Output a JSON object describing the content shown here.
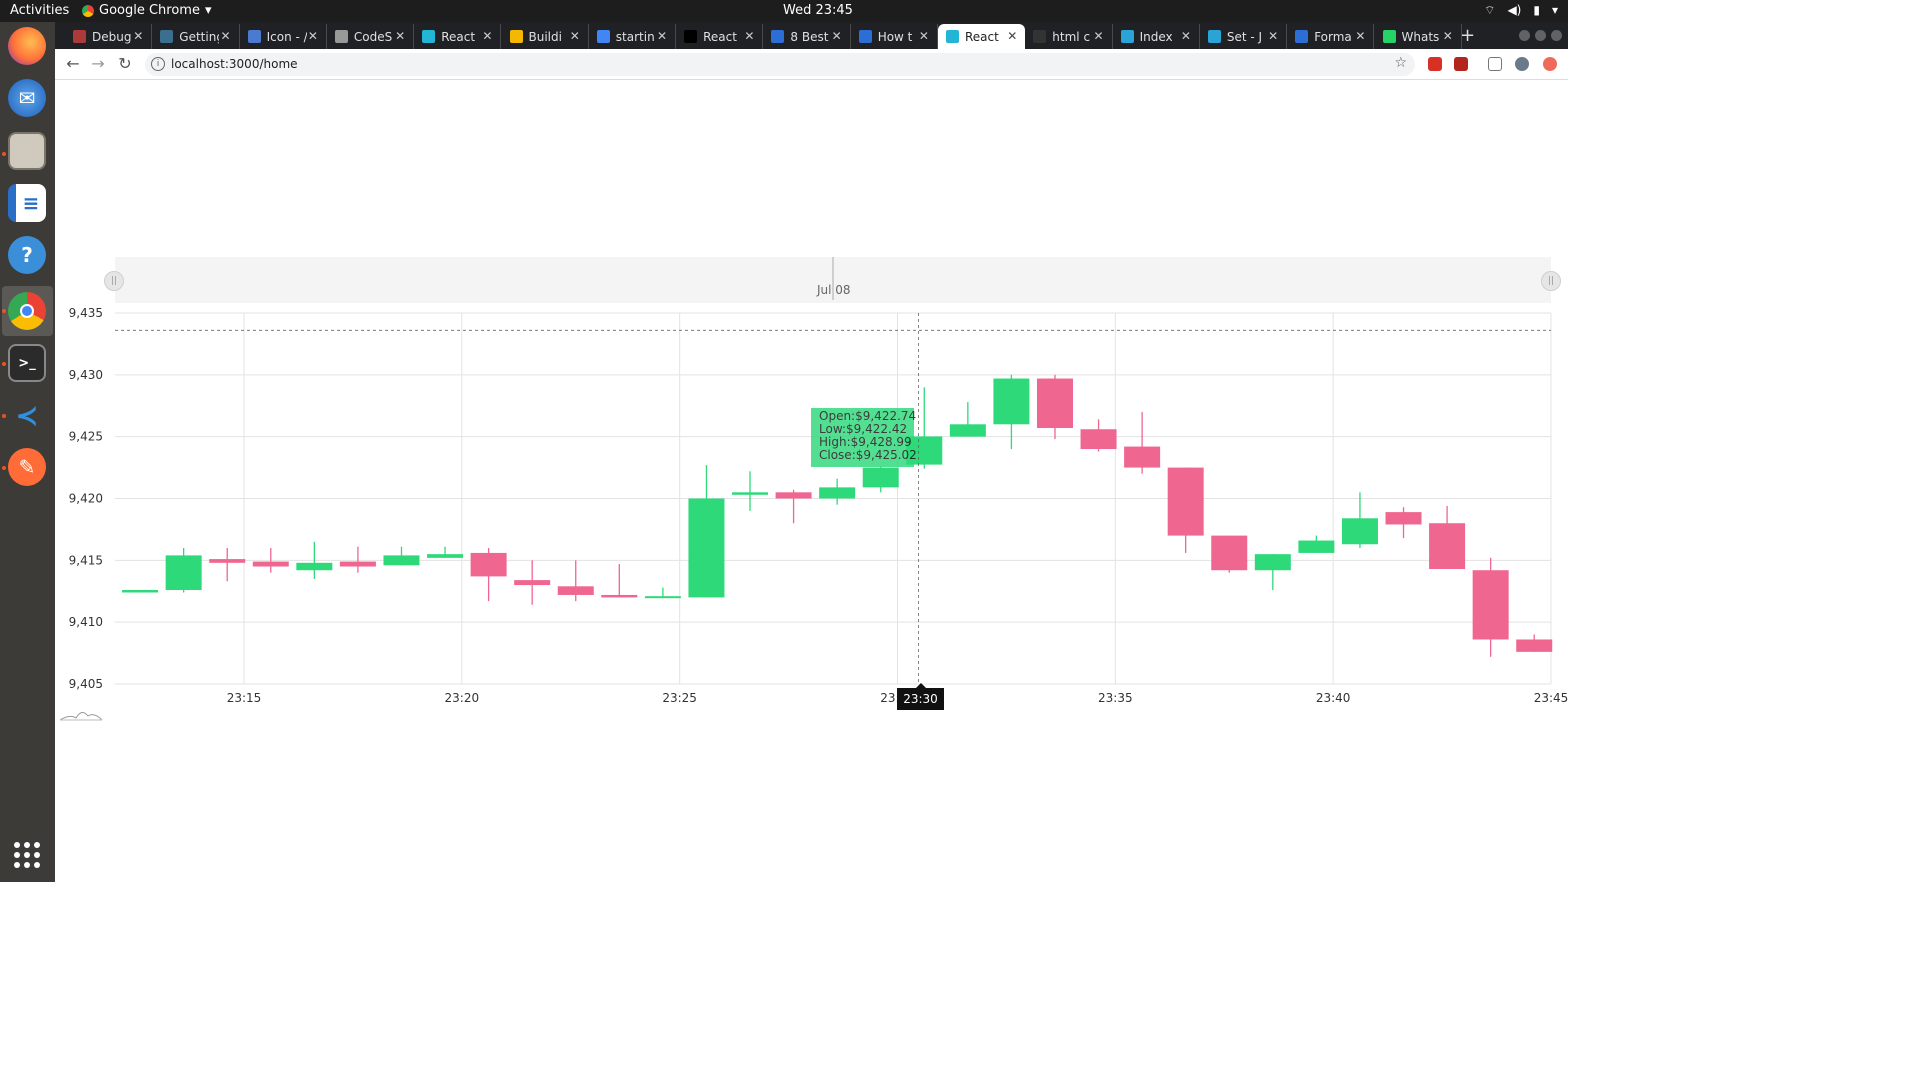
{
  "system_bar": {
    "activities": "Activities",
    "app_name": "Google Chrome",
    "clock": "Wed 23:45"
  },
  "dock": {
    "items": [
      "firefox-icon",
      "thunderbird-icon",
      "files-icon",
      "writer-icon",
      "help-icon",
      "chrome-icon",
      "terminal-icon",
      "vscode-icon",
      "postman-icon"
    ]
  },
  "browser": {
    "tabs": [
      {
        "title": "Debug",
        "color": "#ad3a3a"
      },
      {
        "title": "Getting",
        "color": "#3a6f8f"
      },
      {
        "title": "Icon - /",
        "color": "#4a7bd0"
      },
      {
        "title": "CodeS",
        "color": "#999999"
      },
      {
        "title": "React",
        "color": "#22b5d6"
      },
      {
        "title": "Buildi",
        "color": "#f5b800"
      },
      {
        "title": "startin",
        "color": "#4285f4"
      },
      {
        "title": "React",
        "color": "#000000"
      },
      {
        "title": "8 Best",
        "color": "#2b6fd6"
      },
      {
        "title": "How t",
        "color": "#2b6fd6"
      },
      {
        "title": "React",
        "color": "#22b5d6",
        "active": true
      },
      {
        "title": "html c",
        "color": "#333333"
      },
      {
        "title": "Index",
        "color": "#2aa3d6"
      },
      {
        "title": "Set - J",
        "color": "#2aa3d6"
      },
      {
        "title": "Forma",
        "color": "#2b6fd6"
      },
      {
        "title": "Whats",
        "color": "#25d366"
      }
    ],
    "url": "localhost:3000/home"
  },
  "navigator": {
    "date_label": "Jul 08"
  },
  "tooltip": {
    "open": "Open:$9,422.74",
    "low": "Low:$9,422.42",
    "high": "High:$9,428.99",
    "close": "Close:$9,425.02"
  },
  "crosshair": {
    "x_label": "23:30"
  },
  "chart_data": {
    "type": "candlestick",
    "y_ticks": [
      "9,435",
      "9,430",
      "9,425",
      "9,420",
      "9,415",
      "9,410",
      "9,405"
    ],
    "x_ticks": [
      "23:15",
      "23:20",
      "23:25",
      "23:30",
      "23:35",
      "23:40",
      "23:45"
    ],
    "ylim": [
      9405,
      9435
    ],
    "colors": {
      "up": "#2ed97a",
      "down": "#ef6690"
    },
    "candles": [
      {
        "t": "23:13",
        "o": 9412.4,
        "h": 9412.6,
        "l": 9412.4,
        "c": 9412.6
      },
      {
        "t": "23:14",
        "o": 9412.6,
        "h": 9416.0,
        "l": 9412.4,
        "c": 9415.4
      },
      {
        "t": "23:15",
        "o": 9415.1,
        "h": 9416.0,
        "l": 9413.3,
        "c": 9414.8
      },
      {
        "t": "23:16",
        "o": 9414.9,
        "h": 9416.0,
        "l": 9414.0,
        "c": 9414.5
      },
      {
        "t": "23:17",
        "o": 9414.2,
        "h": 9416.5,
        "l": 9413.5,
        "c": 9414.8
      },
      {
        "t": "23:18",
        "o": 9414.9,
        "h": 9416.1,
        "l": 9414.0,
        "c": 9414.5
      },
      {
        "t": "23:19",
        "o": 9414.6,
        "h": 9416.1,
        "l": 9414.6,
        "c": 9415.4
      },
      {
        "t": "23:20",
        "o": 9415.2,
        "h": 9416.1,
        "l": 9415.2,
        "c": 9415.5
      },
      {
        "t": "23:21",
        "o": 9415.6,
        "h": 9416.0,
        "l": 9411.7,
        "c": 9413.7
      },
      {
        "t": "23:22",
        "o": 9413.4,
        "h": 9415.0,
        "l": 9411.4,
        "c": 9413.0
      },
      {
        "t": "23:23",
        "o": 9412.9,
        "h": 9415.0,
        "l": 9411.7,
        "c": 9412.2
      },
      {
        "t": "23:24",
        "o": 9412.2,
        "h": 9414.7,
        "l": 9412.0,
        "c": 9412.0
      },
      {
        "t": "23:25",
        "o": 9412.0,
        "h": 9412.8,
        "l": 9412.0,
        "c": 9412.1
      },
      {
        "t": "23:26",
        "o": 9412.0,
        "h": 9422.7,
        "l": 9412.0,
        "c": 9420.0
      },
      {
        "t": "23:27",
        "o": 9420.3,
        "h": 9422.2,
        "l": 9419.0,
        "c": 9420.5
      },
      {
        "t": "23:28",
        "o": 9420.5,
        "h": 9420.7,
        "l": 9418.0,
        "c": 9420.0
      },
      {
        "t": "23:29",
        "o": 9420.0,
        "h": 9421.6,
        "l": 9419.5,
        "c": 9420.9
      },
      {
        "t": "23:30",
        "o": 9420.9,
        "h": 9422.6,
        "l": 9420.5,
        "c": 9422.5
      },
      {
        "t": "23:31",
        "o": 9422.74,
        "h": 9428.99,
        "l": 9422.42,
        "c": 9425.02
      },
      {
        "t": "23:32",
        "o": 9425.0,
        "h": 9427.8,
        "l": 9425.0,
        "c": 9426.0
      },
      {
        "t": "23:33",
        "o": 9426.0,
        "h": 9430.0,
        "l": 9424.0,
        "c": 9429.7
      },
      {
        "t": "23:34",
        "o": 9429.7,
        "h": 9430.0,
        "l": 9424.8,
        "c": 9425.7
      },
      {
        "t": "23:35",
        "o": 9425.6,
        "h": 9426.4,
        "l": 9423.8,
        "c": 9424.0
      },
      {
        "t": "23:36",
        "o": 9424.2,
        "h": 9427.0,
        "l": 9422.0,
        "c": 9422.5
      },
      {
        "t": "23:37",
        "o": 9422.5,
        "h": 9422.5,
        "l": 9415.6,
        "c": 9417.0
      },
      {
        "t": "23:38",
        "o": 9417.0,
        "h": 9417.0,
        "l": 9414.0,
        "c": 9414.2
      },
      {
        "t": "23:39",
        "o": 9414.2,
        "h": 9415.5,
        "l": 9412.6,
        "c": 9415.5
      },
      {
        "t": "23:40",
        "o": 9415.6,
        "h": 9417.0,
        "l": 9415.6,
        "c": 9416.6
      },
      {
        "t": "23:41",
        "o": 9416.3,
        "h": 9420.5,
        "l": 9416.0,
        "c": 9418.4
      },
      {
        "t": "23:42",
        "o": 9418.9,
        "h": 9419.3,
        "l": 9416.8,
        "c": 9417.9
      },
      {
        "t": "23:43",
        "o": 9418.0,
        "h": 9419.4,
        "l": 9414.3,
        "c": 9414.3
      },
      {
        "t": "23:44",
        "o": 9414.2,
        "h": 9415.2,
        "l": 9407.2,
        "c": 9408.6
      },
      {
        "t": "23:45",
        "o": 9408.6,
        "h": 9409.0,
        "l": 9407.6,
        "c": 9407.6
      }
    ],
    "crosshair_y": 9433.6,
    "grid": true
  }
}
